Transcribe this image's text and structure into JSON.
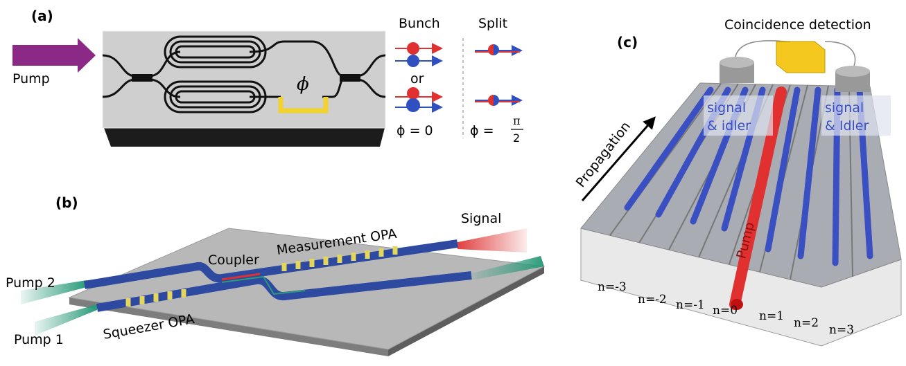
{
  "panel_a": {
    "label": "(a)",
    "pump": "Pump",
    "bunch": "Bunch",
    "split": "Split",
    "or": "or",
    "phi": "ϕ",
    "phi_zero": "ϕ = 0",
    "phi_half": {
      "lhs": "ϕ =",
      "num": "π",
      "den": "2"
    }
  },
  "panel_b": {
    "label": "(b)",
    "signal": "Signal",
    "coupler": "Coupler",
    "measurement": "Measurement OPA",
    "pump2": "Pump 2",
    "pump1": "Pump 1",
    "squeezer": "Squeezer OPA"
  },
  "panel_c": {
    "label": "(c)",
    "detection": "Coincidence detection",
    "propagation": "Propagation",
    "left_modes": [
      "signal",
      "& idler"
    ],
    "right_modes": [
      "signal",
      "& Idler"
    ],
    "pump": "Pump",
    "indices": [
      "n=-3",
      "n=-2",
      "n=-1",
      "n=0",
      "n=1",
      "n=2",
      "n=3"
    ]
  }
}
